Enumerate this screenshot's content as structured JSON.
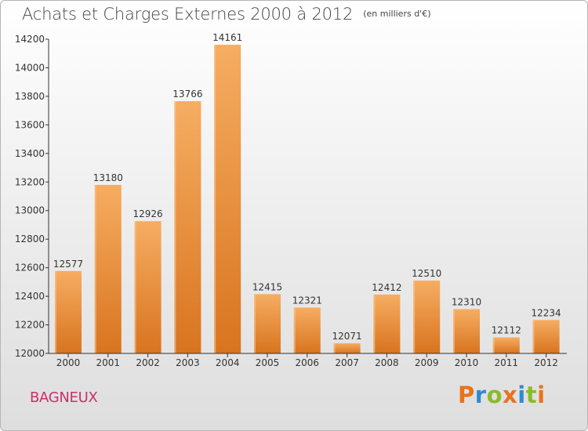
{
  "title": "Achats et Charges Externes 2000 à 2012",
  "unit_note": "(en milliers d'€)",
  "city": "BAGNEUX",
  "logo": {
    "text": "Proxiti",
    "letter_colors": [
      "#e8731c",
      "#2e8bd1",
      "#8bbb2a",
      "#e8731c",
      "#2e8bd1",
      "#8bbb2a",
      "#e8731c"
    ]
  },
  "colors": {
    "bar_light": "#f6ad62",
    "bar_dark": "#d8741f",
    "axis": "#333333",
    "city": "#c8306a"
  },
  "chart_data": {
    "type": "bar",
    "categories": [
      "2000",
      "2001",
      "2002",
      "2003",
      "2004",
      "2005",
      "2006",
      "2007",
      "2008",
      "2009",
      "2010",
      "2011",
      "2012"
    ],
    "values": [
      12577,
      13180,
      12926,
      13766,
      14161,
      12415,
      12321,
      12071,
      12412,
      12510,
      12310,
      12112,
      12234
    ],
    "ylim": [
      12000,
      14200
    ],
    "yticks": [
      12000,
      12200,
      12400,
      12600,
      12800,
      13000,
      13200,
      13400,
      13600,
      13800,
      14000,
      14200
    ],
    "data_labels": true,
    "grid": false
  }
}
